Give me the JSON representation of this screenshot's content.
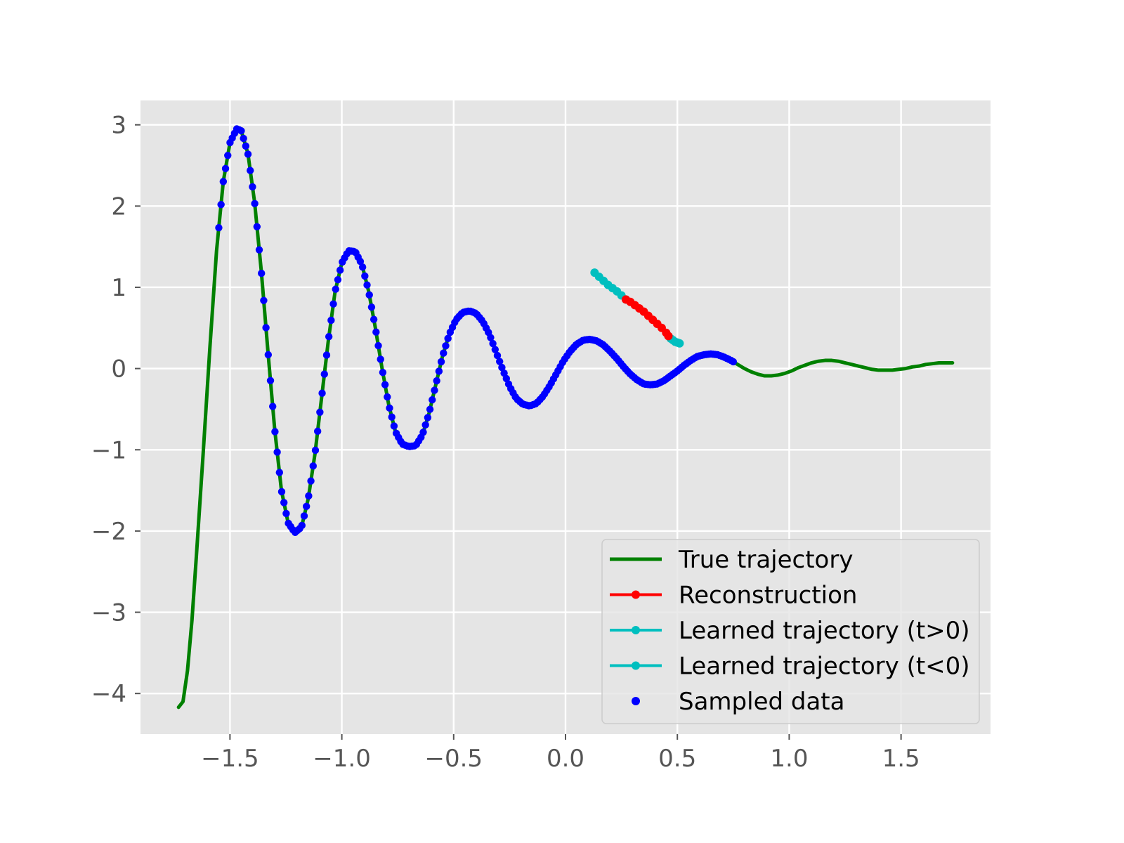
{
  "chart_data": {
    "type": "line",
    "title": "",
    "xlabel": "",
    "ylabel": "",
    "xlim": [
      -1.9,
      1.9
    ],
    "ylim": [
      -4.5,
      3.3
    ],
    "grid": true,
    "style": "ggplot",
    "x_ticks": [
      -1.5,
      -1.0,
      -0.5,
      0.0,
      0.5,
      1.0,
      1.5
    ],
    "x_tick_labels": [
      "−1.5",
      "−1.0",
      "−0.5",
      "0.0",
      "0.5",
      "1.0",
      "1.5"
    ],
    "y_ticks": [
      3,
      2,
      1,
      0,
      -1,
      -2,
      -3,
      -4
    ],
    "y_tick_labels": [
      "3",
      "2",
      "1",
      "0",
      "−1",
      "−2",
      "−3",
      "−4"
    ],
    "legend_position": "lower-right",
    "series": [
      {
        "name": "True trajectory",
        "kind": "line",
        "color": "#008000",
        "points": [
          [
            -1.73,
            -4.17
          ],
          [
            -1.71,
            -4.1
          ],
          [
            -1.69,
            -3.72
          ],
          [
            -1.67,
            -3.1
          ],
          [
            -1.65,
            -2.3
          ],
          [
            -1.62,
            -1.05
          ],
          [
            -1.59,
            0.25
          ],
          [
            -1.56,
            1.45
          ],
          [
            -1.53,
            2.3
          ],
          [
            -1.5,
            2.78
          ],
          [
            -1.47,
            2.95
          ],
          [
            -1.45,
            2.93
          ],
          [
            -1.42,
            2.65
          ],
          [
            -1.39,
            2.05
          ],
          [
            -1.36,
            1.2
          ],
          [
            -1.33,
            0.2
          ],
          [
            -1.3,
            -0.75
          ],
          [
            -1.27,
            -1.5
          ],
          [
            -1.24,
            -1.9
          ],
          [
            -1.21,
            -2.02
          ],
          [
            -1.18,
            -1.95
          ],
          [
            -1.15,
            -1.6
          ],
          [
            -1.12,
            -1.05
          ],
          [
            -1.09,
            -0.35
          ],
          [
            -1.06,
            0.35
          ],
          [
            -1.03,
            0.95
          ],
          [
            -1.0,
            1.3
          ],
          [
            -0.97,
            1.45
          ],
          [
            -0.94,
            1.44
          ],
          [
            -0.91,
            1.28
          ],
          [
            -0.88,
            0.95
          ],
          [
            -0.85,
            0.5
          ],
          [
            -0.82,
            0.0
          ],
          [
            -0.79,
            -0.45
          ],
          [
            -0.76,
            -0.78
          ],
          [
            -0.73,
            -0.93
          ],
          [
            -0.7,
            -0.96
          ],
          [
            -0.67,
            -0.95
          ],
          [
            -0.64,
            -0.82
          ],
          [
            -0.61,
            -0.55
          ],
          [
            -0.58,
            -0.2
          ],
          [
            -0.55,
            0.15
          ],
          [
            -0.52,
            0.42
          ],
          [
            -0.49,
            0.6
          ],
          [
            -0.46,
            0.69
          ],
          [
            -0.43,
            0.71
          ],
          [
            -0.4,
            0.68
          ],
          [
            -0.37,
            0.58
          ],
          [
            -0.34,
            0.42
          ],
          [
            -0.31,
            0.2
          ],
          [
            -0.28,
            -0.02
          ],
          [
            -0.25,
            -0.22
          ],
          [
            -0.22,
            -0.37
          ],
          [
            -0.19,
            -0.44
          ],
          [
            -0.16,
            -0.46
          ],
          [
            -0.13,
            -0.43
          ],
          [
            -0.1,
            -0.34
          ],
          [
            -0.07,
            -0.21
          ],
          [
            -0.04,
            -0.06
          ],
          [
            -0.01,
            0.09
          ],
          [
            0.02,
            0.21
          ],
          [
            0.05,
            0.3
          ],
          [
            0.08,
            0.35
          ],
          [
            0.11,
            0.36
          ],
          [
            0.14,
            0.34
          ],
          [
            0.17,
            0.29
          ],
          [
            0.2,
            0.21
          ],
          [
            0.23,
            0.12
          ],
          [
            0.26,
            0.02
          ],
          [
            0.29,
            -0.07
          ],
          [
            0.32,
            -0.14
          ],
          [
            0.35,
            -0.19
          ],
          [
            0.38,
            -0.2
          ],
          [
            0.41,
            -0.19
          ],
          [
            0.44,
            -0.15
          ],
          [
            0.47,
            -0.09
          ],
          [
            0.5,
            -0.03
          ],
          [
            0.53,
            0.04
          ],
          [
            0.56,
            0.1
          ],
          [
            0.59,
            0.15
          ],
          [
            0.62,
            0.17
          ],
          [
            0.65,
            0.18
          ],
          [
            0.68,
            0.17
          ],
          [
            0.71,
            0.14
          ],
          [
            0.74,
            0.1
          ],
          [
            0.77,
            0.05
          ],
          [
            0.8,
            0.0
          ],
          [
            0.83,
            -0.04
          ],
          [
            0.86,
            -0.07
          ],
          [
            0.89,
            -0.09
          ],
          [
            0.92,
            -0.09
          ],
          [
            0.95,
            -0.08
          ],
          [
            0.98,
            -0.06
          ],
          [
            1.01,
            -0.03
          ],
          [
            1.04,
            0.01
          ],
          [
            1.07,
            0.04
          ],
          [
            1.1,
            0.07
          ],
          [
            1.13,
            0.09
          ],
          [
            1.16,
            0.1
          ],
          [
            1.19,
            0.1
          ],
          [
            1.22,
            0.09
          ],
          [
            1.25,
            0.07
          ],
          [
            1.28,
            0.05
          ],
          [
            1.31,
            0.03
          ],
          [
            1.34,
            0.01
          ],
          [
            1.37,
            -0.01
          ],
          [
            1.4,
            -0.02
          ],
          [
            1.43,
            -0.02
          ],
          [
            1.46,
            -0.02
          ],
          [
            1.49,
            -0.01
          ],
          [
            1.52,
            0.0
          ],
          [
            1.55,
            0.02
          ],
          [
            1.58,
            0.03
          ],
          [
            1.61,
            0.05
          ],
          [
            1.64,
            0.06
          ],
          [
            1.67,
            0.07
          ],
          [
            1.7,
            0.07
          ],
          [
            1.73,
            0.07
          ]
        ]
      },
      {
        "name": "Reconstruction",
        "kind": "line-markers",
        "color": "#ff0000",
        "points": [
          [
            0.27,
            0.85
          ],
          [
            0.29,
            0.82
          ],
          [
            0.31,
            0.78
          ],
          [
            0.33,
            0.74
          ],
          [
            0.35,
            0.7
          ],
          [
            0.37,
            0.65
          ],
          [
            0.39,
            0.6
          ],
          [
            0.41,
            0.55
          ],
          [
            0.43,
            0.5
          ],
          [
            0.45,
            0.44
          ],
          [
            0.46,
            0.4
          ]
        ]
      },
      {
        "name": "Learned trajectory (t>0)",
        "kind": "line-markers",
        "color": "#00bfbf",
        "points": [
          [
            0.46,
            0.4
          ],
          [
            0.47,
            0.37
          ],
          [
            0.48,
            0.35
          ],
          [
            0.49,
            0.33
          ],
          [
            0.5,
            0.32
          ],
          [
            0.51,
            0.31
          ]
        ]
      },
      {
        "name": "Learned trajectory (t<0)",
        "kind": "line-markers",
        "color": "#00bfbf",
        "points": [
          [
            0.13,
            1.18
          ],
          [
            0.15,
            1.13
          ],
          [
            0.17,
            1.08
          ],
          [
            0.19,
            1.03
          ],
          [
            0.21,
            0.99
          ],
          [
            0.23,
            0.95
          ],
          [
            0.25,
            0.9
          ],
          [
            0.27,
            0.85
          ]
        ]
      },
      {
        "name": "Sampled data",
        "kind": "scatter",
        "color": "#0000ff",
        "x_range": [
          -1.55,
          0.75
        ],
        "n_points": 230
      }
    ]
  }
}
